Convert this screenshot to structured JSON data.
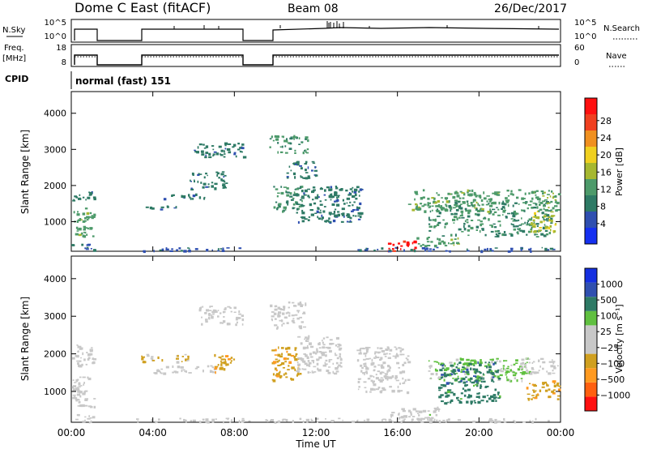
{
  "header": {
    "station": "Dome C East (fitACF)",
    "beam": "Beam 08",
    "date": "26/Dec/2017"
  },
  "top_panels": {
    "nsky_label": "N.Sky",
    "nsearch_label": "N.Search",
    "exp_ticks": [
      "10^5",
      "10^0"
    ],
    "freq_label_line1": "Freq.",
    "freq_label_line2": "[MHz]",
    "freq_ticks": [
      "18",
      "8"
    ],
    "nave_label": "Nave",
    "nave_ticks": [
      "60",
      "0"
    ],
    "cpid_label": "CPID",
    "cpid_value": "normal (fast) 151"
  },
  "axes": {
    "xlabel": "Time UT",
    "ylabel": "Slant Range [km]",
    "x_ticks": [
      "00:00",
      "04:00",
      "08:00",
      "12:00",
      "16:00",
      "20:00",
      "00:00"
    ],
    "y_ticks": [
      "1000",
      "2000",
      "3000",
      "4000"
    ],
    "y_range": [
      180,
      4600
    ],
    "x_range_hours": [
      0,
      24
    ]
  },
  "colors": {
    "scale_power": [
      "#1530f0",
      "#2f4fb0",
      "#2e7a65",
      "#4d9a6a",
      "#a6b830",
      "#f0d020",
      "#f09020",
      "#f04020",
      "#ff1010"
    ],
    "scale_velocity": [
      "#ff1010",
      "#ff6010",
      "#ff9a20",
      "#d0a020",
      "#c8c8c8",
      "#c8c8c8",
      "#60c040",
      "#2e7a65",
      "#3050b0",
      "#1530e0"
    ]
  },
  "chart_data": [
    {
      "type": "heatmap",
      "title": "",
      "xlabel": "Time UT",
      "ylabel": "Slant Range [km]",
      "colorbar_label": "Power [dB]",
      "colorbar_ticks": [
        "4",
        "8",
        "12",
        "16",
        "20",
        "24",
        "28"
      ],
      "value_range": [
        0,
        30
      ],
      "regions": [
        {
          "t": [
            0.0,
            1.1
          ],
          "r": [
            600,
            1400
          ],
          "value": 12
        },
        {
          "t": [
            0.0,
            1.1
          ],
          "r": [
            1600,
            1900
          ],
          "value": 8
        },
        {
          "t": [
            0.0,
            1.1
          ],
          "r": [
            200,
            400
          ],
          "value": 6
        },
        {
          "t": [
            3.3,
            8.4
          ],
          "r": [
            200,
            300
          ],
          "value": 6
        },
        {
          "t": [
            3.6,
            5.4
          ],
          "r": [
            1350,
            1450
          ],
          "value": 8
        },
        {
          "t": [
            4.5,
            6.5
          ],
          "r": [
            1650,
            1800
          ],
          "value": 8
        },
        {
          "t": [
            5.8,
            7.6
          ],
          "r": [
            1900,
            2400
          ],
          "value": 8
        },
        {
          "t": [
            6.0,
            8.5
          ],
          "r": [
            2800,
            3200
          ],
          "value": 8
        },
        {
          "t": [
            9.7,
            11.6
          ],
          "r": [
            2900,
            3400
          ],
          "value": 10
        },
        {
          "t": [
            9.9,
            11.3
          ],
          "r": [
            1300,
            2000
          ],
          "value": 10
        },
        {
          "t": [
            10.5,
            12.0
          ],
          "r": [
            2200,
            2700
          ],
          "value": 8
        },
        {
          "t": [
            11.0,
            14.2
          ],
          "r": [
            1000,
            2000
          ],
          "value": 8
        },
        {
          "t": [
            15.5,
            16.9
          ],
          "r": [
            200,
            500
          ],
          "value": 28
        },
        {
          "t": [
            16.9,
            19.0
          ],
          "r": [
            350,
            600
          ],
          "value": 12
        },
        {
          "t": [
            16.5,
            23.9
          ],
          "r": [
            1300,
            1900
          ],
          "value": 12
        },
        {
          "t": [
            17.5,
            23.5
          ],
          "r": [
            600,
            1600
          ],
          "value": 10
        },
        {
          "t": [
            22.5,
            23.8
          ],
          "r": [
            700,
            1300
          ],
          "value": 16
        },
        {
          "t": [
            14.0,
            23.9
          ],
          "r": [
            200,
            300
          ],
          "value": 6
        }
      ]
    },
    {
      "type": "heatmap",
      "title": "",
      "xlabel": "Time UT",
      "ylabel": "Slant Range [km]",
      "colorbar_label": "Velocity [m s⁻¹]",
      "colorbar_ticks": [
        "1000",
        "500",
        "100",
        "25",
        "−25",
        "−100",
        "−500",
        "−1000"
      ],
      "value_range": [
        -1200,
        1200
      ],
      "regions": [
        {
          "t": [
            0.0,
            1.1
          ],
          "r": [
            600,
            1400
          ],
          "value": 60
        },
        {
          "t": [
            0.0,
            1.1
          ],
          "r": [
            1700,
            2300
          ],
          "value": -100
        },
        {
          "t": [
            0.0,
            1.1
          ],
          "r": [
            200,
            400
          ],
          "value": 0
        },
        {
          "t": [
            3.4,
            5.8
          ],
          "r": [
            1800,
            2000
          ],
          "value": -250
        },
        {
          "t": [
            4.0,
            7.0
          ],
          "r": [
            1500,
            1700
          ],
          "value": 0
        },
        {
          "t": [
            7.0,
            8.0
          ],
          "r": [
            1500,
            2000
          ],
          "value": -400
        },
        {
          "t": [
            6.2,
            8.4
          ],
          "r": [
            2800,
            3300
          ],
          "value": 0
        },
        {
          "t": [
            9.7,
            11.5
          ],
          "r": [
            2700,
            3400
          ],
          "value": 0
        },
        {
          "t": [
            9.8,
            11.2
          ],
          "r": [
            1300,
            2200
          ],
          "value": -400
        },
        {
          "t": [
            11.0,
            13.2
          ],
          "r": [
            1500,
            2500
          ],
          "value": -30
        },
        {
          "t": [
            14.0,
            16.5
          ],
          "r": [
            1000,
            2200
          ],
          "value": 80
        },
        {
          "t": [
            15.6,
            18.0
          ],
          "r": [
            250,
            600
          ],
          "value": 100
        },
        {
          "t": [
            17.5,
            22.5
          ],
          "r": [
            1300,
            1900
          ],
          "value": 300
        },
        {
          "t": [
            18.0,
            21.0
          ],
          "r": [
            700,
            1800
          ],
          "value": 600
        },
        {
          "t": [
            22.0,
            23.9
          ],
          "r": [
            1500,
            1900
          ],
          "value": 0
        },
        {
          "t": [
            22.3,
            23.9
          ],
          "r": [
            800,
            1300
          ],
          "value": -400
        },
        {
          "t": [
            3.0,
            23.9
          ],
          "r": [
            200,
            300
          ],
          "value": 30
        }
      ]
    }
  ]
}
